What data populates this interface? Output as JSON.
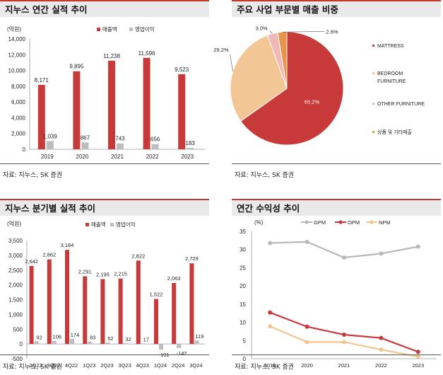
{
  "panels": {
    "p1": {
      "title": "지누스 연간 실적 추이",
      "source": "자료: 지누스, SK 증권"
    },
    "p2": {
      "title": "주요 사업 부문별 매출 비중",
      "source": "자료: 지누스, SK 증권"
    },
    "p3": {
      "title": "지누스 분기별 실적 추이",
      "source": "자료: 지누스, SK 증권"
    },
    "p4": {
      "title": "연간 수익성 추이",
      "source": "자료: 지누스, SK 증권"
    }
  },
  "colors": {
    "red": "#c8393a",
    "gray": "#bdbdbd",
    "tan": "#f2c795",
    "pink": "#f0b8b8",
    "orange": "#e8954a",
    "lgray": "#b8b8b8",
    "lorange": "#f3c48e"
  },
  "chart_data": [
    {
      "type": "bar",
      "ylabel": "(억원)",
      "categories": [
        "2019",
        "2020",
        "2021",
        "2022",
        "2023"
      ],
      "series": [
        {
          "name": "매출액",
          "values": [
            8171,
            9895,
            11238,
            11596,
            9523
          ],
          "labels": [
            "8,171",
            "9,895",
            "11,238",
            "11,596",
            "9,523"
          ]
        },
        {
          "name": "영업이익",
          "values": [
            1039,
            867,
            743,
            656,
            183
          ],
          "labels": [
            "1,039",
            "867",
            "743",
            "656",
            "183"
          ]
        }
      ],
      "ylim": [
        0,
        14000
      ],
      "yticks": [
        "0",
        "2,000",
        "4,000",
        "6,000",
        "8,000",
        "10,000",
        "12,000",
        "14,000"
      ]
    },
    {
      "type": "pie",
      "slices": [
        {
          "name": "MATTRESS",
          "value": 65.2,
          "label": "65.2%"
        },
        {
          "name": "BEDROOM FURNITURE",
          "value": 29.2,
          "label": "29.2%"
        },
        {
          "name": "OTHER FURNITURE",
          "value": 3.0,
          "label": "3.0%"
        },
        {
          "name": "상품 및 기타매출",
          "value": 2.6,
          "label": "2.6%"
        }
      ]
    },
    {
      "type": "bar",
      "ylabel": "(억원)",
      "categories": [
        "2Q22",
        "3Q22",
        "4Q22",
        "1Q23",
        "2Q23",
        "3Q23",
        "4Q23",
        "1Q24",
        "2Q24",
        "3Q24"
      ],
      "series": [
        {
          "name": "매출액",
          "values": [
            2642,
            2862,
            3184,
            2291,
            2195,
            2215,
            2822,
            1522,
            2063,
            2729
          ],
          "labels": [
            "2,642",
            "2,862",
            "3,184",
            "2,291",
            "2,195",
            "2,215",
            "2,822",
            "1,522",
            "2,063",
            "2,729"
          ]
        },
        {
          "name": "영업이익",
          "values": [
            92,
            106,
            174,
            83,
            52,
            32,
            17,
            -191,
            -142,
            119
          ],
          "labels": [
            "92",
            "106",
            "174",
            "83",
            "52",
            "32",
            "17",
            "-191",
            "-142",
            "119"
          ]
        }
      ],
      "ylim": [
        -500,
        3500
      ],
      "yticks": [
        "-500",
        "0",
        "500",
        "1,000",
        "1,500",
        "2,000",
        "2,500",
        "3,000",
        "3,500"
      ]
    },
    {
      "type": "line",
      "ylabel": "(%)",
      "categories": [
        "2019",
        "2020",
        "2021",
        "2022",
        "2023"
      ],
      "series": [
        {
          "name": "GPM",
          "values": [
            31.8,
            32.1,
            27.8,
            28.9,
            30.8
          ]
        },
        {
          "name": "OPM",
          "values": [
            12.7,
            8.8,
            6.6,
            5.7,
            1.9
          ]
        },
        {
          "name": "NPM",
          "values": [
            8.9,
            4.6,
            4.6,
            2.5,
            0.6
          ]
        }
      ],
      "ylim": [
        0,
        35
      ],
      "yticks": [
        "0",
        "5",
        "10",
        "15",
        "20",
        "25",
        "30",
        "35"
      ]
    }
  ]
}
